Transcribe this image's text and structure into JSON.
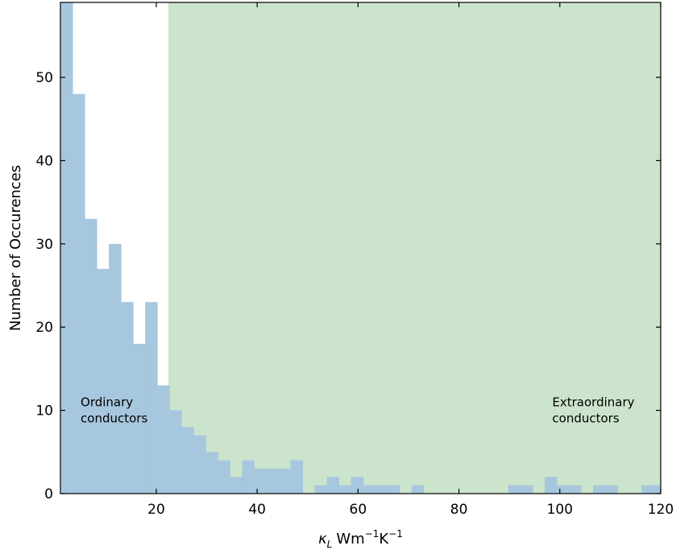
{
  "chart_data": {
    "type": "bar",
    "title": "",
    "xlabel": {
      "symbol": "κ",
      "symbol_sub": "L",
      "unit_w": "Wm",
      "exp1": "−1",
      "unit_k": "K",
      "exp2": "−1"
    },
    "ylabel": "Number of Occurences",
    "xlim": [
      1,
      120
    ],
    "ylim": [
      0,
      59
    ],
    "xticks": [
      20,
      40,
      60,
      80,
      100,
      120
    ],
    "yticks": [
      0,
      10,
      20,
      30,
      40,
      50
    ],
    "bar_color": "#a7c7df",
    "region": {
      "from": 22.4,
      "to": 120,
      "color": "#cce4cc"
    },
    "annotations": [
      {
        "lines": [
          "Ordinary",
          "conductors"
        ],
        "x": 5,
        "y": 10.5
      },
      {
        "lines": [
          "Extraordinary",
          "conductors"
        ],
        "x": 98.5,
        "y": 10.5
      }
    ],
    "bins": [
      {
        "x0": 1.0,
        "x1": 3.4,
        "count": 59
      },
      {
        "x0": 3.4,
        "x1": 5.8,
        "count": 48
      },
      {
        "x0": 5.8,
        "x1": 8.2,
        "count": 33
      },
      {
        "x0": 8.2,
        "x1": 10.6,
        "count": 27
      },
      {
        "x0": 10.6,
        "x1": 13.0,
        "count": 30
      },
      {
        "x0": 13.0,
        "x1": 15.4,
        "count": 23
      },
      {
        "x0": 15.4,
        "x1": 17.8,
        "count": 18
      },
      {
        "x0": 17.8,
        "x1": 20.2,
        "count": 23
      },
      {
        "x0": 20.2,
        "x1": 22.6,
        "count": 13
      },
      {
        "x0": 22.6,
        "x1": 25.0,
        "count": 10
      },
      {
        "x0": 25.0,
        "x1": 27.4,
        "count": 8
      },
      {
        "x0": 27.4,
        "x1": 29.8,
        "count": 7
      },
      {
        "x0": 29.8,
        "x1": 32.2,
        "count": 5
      },
      {
        "x0": 32.2,
        "x1": 34.6,
        "count": 4
      },
      {
        "x0": 34.6,
        "x1": 37.0,
        "count": 2
      },
      {
        "x0": 37.0,
        "x1": 39.4,
        "count": 4
      },
      {
        "x0": 39.4,
        "x1": 41.8,
        "count": 3
      },
      {
        "x0": 41.8,
        "x1": 44.2,
        "count": 3
      },
      {
        "x0": 44.2,
        "x1": 46.6,
        "count": 3
      },
      {
        "x0": 46.6,
        "x1": 49.0,
        "count": 4
      },
      {
        "x0": 49.0,
        "x1": 51.4,
        "count": 0
      },
      {
        "x0": 51.4,
        "x1": 53.8,
        "count": 1
      },
      {
        "x0": 53.8,
        "x1": 56.2,
        "count": 2
      },
      {
        "x0": 56.2,
        "x1": 58.6,
        "count": 1
      },
      {
        "x0": 58.6,
        "x1": 61.0,
        "count": 2
      },
      {
        "x0": 61.0,
        "x1": 63.4,
        "count": 1
      },
      {
        "x0": 63.4,
        "x1": 65.8,
        "count": 1
      },
      {
        "x0": 65.8,
        "x1": 68.2,
        "count": 1
      },
      {
        "x0": 68.2,
        "x1": 70.6,
        "count": 0
      },
      {
        "x0": 70.6,
        "x1": 73.0,
        "count": 1
      },
      {
        "x0": 89.8,
        "x1": 92.2,
        "count": 1
      },
      {
        "x0": 92.2,
        "x1": 94.6,
        "count": 1
      },
      {
        "x0": 97.0,
        "x1": 99.4,
        "count": 2
      },
      {
        "x0": 99.4,
        "x1": 101.8,
        "count": 1
      },
      {
        "x0": 101.8,
        "x1": 104.2,
        "count": 1
      },
      {
        "x0": 106.6,
        "x1": 109.0,
        "count": 1
      },
      {
        "x0": 109.0,
        "x1": 111.4,
        "count": 1
      },
      {
        "x0": 116.2,
        "x1": 118.6,
        "count": 1
      },
      {
        "x0": 118.6,
        "x1": 121.0,
        "count": 1
      }
    ]
  }
}
